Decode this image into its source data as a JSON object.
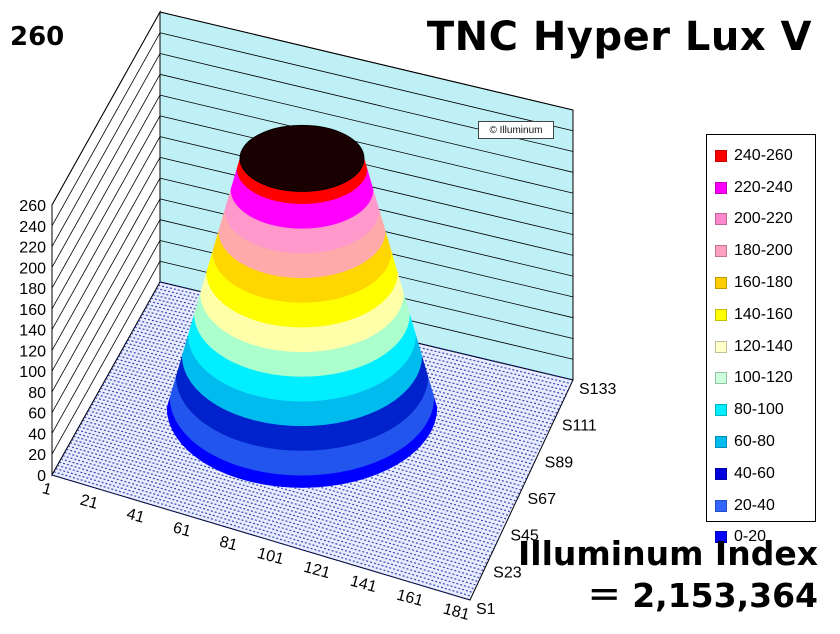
{
  "chart_data": {
    "type": "surface3d",
    "title": "TNC Hyper Lux V",
    "peak_value": "260",
    "watermark": "© Illuminum",
    "index_label": "Illuminum Index",
    "index_value": "＝ 2,153,364",
    "z_axis": {
      "ticks": [
        "0",
        "20",
        "40",
        "60",
        "80",
        "100",
        "120",
        "140",
        "160",
        "180",
        "200",
        "220",
        "240",
        "260"
      ],
      "range": [
        0,
        260
      ]
    },
    "x_axis": {
      "ticks": [
        "1",
        "21",
        "41",
        "61",
        "81",
        "101",
        "121",
        "141",
        "161",
        "181"
      ]
    },
    "y_axis": {
      "ticks": [
        "S1",
        "S23",
        "S45",
        "S67",
        "S89",
        "S111",
        "S133"
      ]
    },
    "surface": {
      "shape": "cone",
      "base_level": 10,
      "top_level": 250,
      "bands": [
        {
          "range": "0-20",
          "color": "#0000ff"
        },
        {
          "range": "20-40",
          "color": "#2255ee"
        },
        {
          "range": "40-60",
          "color": "#0022cc"
        },
        {
          "range": "60-80",
          "color": "#00bbee"
        },
        {
          "range": "80-100",
          "color": "#00eeff"
        },
        {
          "range": "100-120",
          "color": "#aaffcc"
        },
        {
          "range": "120-140",
          "color": "#ffffaa"
        },
        {
          "range": "140-160",
          "color": "#ffff00"
        },
        {
          "range": "160-180",
          "color": "#ffd700"
        },
        {
          "range": "180-200",
          "color": "#ffaaaa"
        },
        {
          "range": "200-220",
          "color": "#ff99cc"
        },
        {
          "range": "220-240",
          "color": "#ff00ff"
        },
        {
          "range": "240-260",
          "color": "#ff0000"
        }
      ],
      "top_cap_color": "#1a0000"
    },
    "legend": [
      {
        "label": "240-260",
        "color": "#ff0000"
      },
      {
        "label": "220-240",
        "color": "#ff00ff"
      },
      {
        "label": "200-220",
        "color": "#ff88cc"
      },
      {
        "label": "180-200",
        "color": "#ffa0c0"
      },
      {
        "label": "160-180",
        "color": "#ffcc00"
      },
      {
        "label": "140-160",
        "color": "#ffff00"
      },
      {
        "label": "120-140",
        "color": "#ffffcc"
      },
      {
        "label": "100-120",
        "color": "#ccffdd"
      },
      {
        "label": "80-100",
        "color": "#00eeff"
      },
      {
        "label": "60-80",
        "color": "#00bbee"
      },
      {
        "label": "40-60",
        "color": "#0000dd"
      },
      {
        "label": "20-40",
        "color": "#3366ff"
      },
      {
        "label": "0-20",
        "color": "#0000ff"
      }
    ],
    "colors": {
      "back_wall": "#bff0f5",
      "floor": "#1a2aa8"
    }
  }
}
